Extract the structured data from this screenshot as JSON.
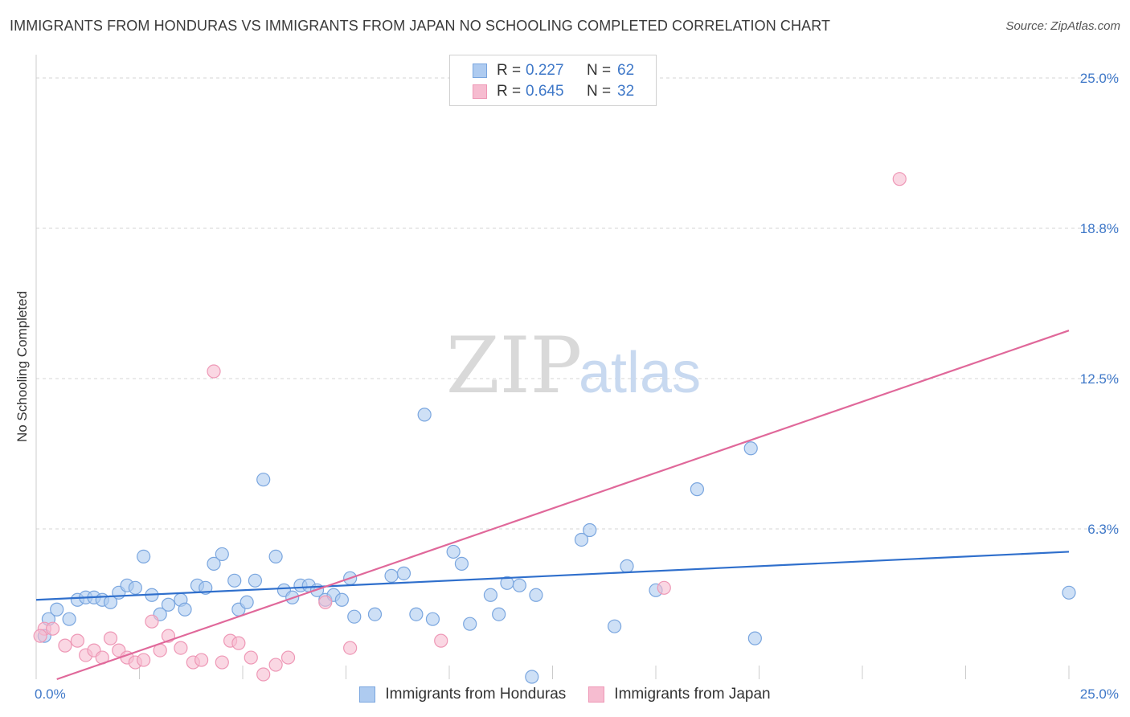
{
  "title": "IMMIGRANTS FROM HONDURAS VS IMMIGRANTS FROM JAPAN NO SCHOOLING COMPLETED CORRELATION CHART",
  "source": "Source: ZipAtlas.com",
  "watermark": {
    "zip": "ZIP",
    "atlas": "atlas"
  },
  "colors": {
    "honduras_fill": "#aecbf0",
    "honduras_stroke": "#7aa6df",
    "honduras_line": "#2f6fcc",
    "japan_fill": "#f6bcd0",
    "japan_stroke": "#ee98b6",
    "japan_line": "#e0689a",
    "grid": "#d6d6d6",
    "tick_text": "#3f78c8"
  },
  "legend": {
    "rows": [
      {
        "r_label": "R =",
        "r_value": "0.227",
        "n_label": "N =",
        "n_value": "62"
      },
      {
        "r_label": "R =",
        "r_value": "0.645",
        "n_label": "N =",
        "n_value": "32"
      }
    ]
  },
  "chart_data": {
    "type": "scatter",
    "title": "IMMIGRANTS FROM HONDURAS VS IMMIGRANTS FROM JAPAN NO SCHOOLING COMPLETED CORRELATION CHART",
    "xlabel": "",
    "ylabel": "No Schooling Completed",
    "xlim": [
      0,
      25
    ],
    "ylim": [
      0,
      25
    ],
    "x_tick_labels": [
      "0.0%",
      "25.0%"
    ],
    "y_ticks": [
      6.25,
      12.5,
      18.75,
      25.0
    ],
    "y_tick_labels": [
      "6.3%",
      "12.5%",
      "18.8%",
      "25.0%"
    ],
    "grid": true,
    "legend_position": "top-center",
    "series": [
      {
        "name": "Immigrants from Honduras",
        "r": 0.227,
        "n": 62,
        "trend": {
          "x": [
            0,
            25
          ],
          "y": [
            3.3,
            5.3
          ]
        },
        "points": [
          [
            0.3,
            2.5
          ],
          [
            0.5,
            2.9
          ],
          [
            0.8,
            2.5
          ],
          [
            1.0,
            3.3
          ],
          [
            1.2,
            3.4
          ],
          [
            1.4,
            3.4
          ],
          [
            1.6,
            3.3
          ],
          [
            1.8,
            3.2
          ],
          [
            2.0,
            3.6
          ],
          [
            2.2,
            3.9
          ],
          [
            2.4,
            3.8
          ],
          [
            2.6,
            5.1
          ],
          [
            2.8,
            3.5
          ],
          [
            3.0,
            2.7
          ],
          [
            3.2,
            3.1
          ],
          [
            3.5,
            3.3
          ],
          [
            3.6,
            2.9
          ],
          [
            3.9,
            3.9
          ],
          [
            4.1,
            3.8
          ],
          [
            4.3,
            4.8
          ],
          [
            4.5,
            5.2
          ],
          [
            4.8,
            4.1
          ],
          [
            4.9,
            2.9
          ],
          [
            5.1,
            3.2
          ],
          [
            5.3,
            4.1
          ],
          [
            5.5,
            8.3
          ],
          [
            5.8,
            5.1
          ],
          [
            6.0,
            3.7
          ],
          [
            6.2,
            3.4
          ],
          [
            6.4,
            3.9
          ],
          [
            6.6,
            3.9
          ],
          [
            6.8,
            3.7
          ],
          [
            7.0,
            3.3
          ],
          [
            7.2,
            3.5
          ],
          [
            7.4,
            3.3
          ],
          [
            7.6,
            4.2
          ],
          [
            7.7,
            2.6
          ],
          [
            8.2,
            2.7
          ],
          [
            8.6,
            4.3
          ],
          [
            8.9,
            4.4
          ],
          [
            9.2,
            2.7
          ],
          [
            9.4,
            11.0
          ],
          [
            9.6,
            2.5
          ],
          [
            10.1,
            5.3
          ],
          [
            10.3,
            4.8
          ],
          [
            10.5,
            2.3
          ],
          [
            11.0,
            3.5
          ],
          [
            11.2,
            2.7
          ],
          [
            11.4,
            4.0
          ],
          [
            11.7,
            3.9
          ],
          [
            12.1,
            3.5
          ],
          [
            13.2,
            5.8
          ],
          [
            13.4,
            6.2
          ],
          [
            14.0,
            2.2
          ],
          [
            14.3,
            4.7
          ],
          [
            15.0,
            3.7
          ],
          [
            16.0,
            7.9
          ],
          [
            17.3,
            9.6
          ],
          [
            17.4,
            1.7
          ],
          [
            25.0,
            3.6
          ],
          [
            12.0,
            0.1
          ],
          [
            0.2,
            1.8
          ]
        ]
      },
      {
        "name": "Immigrants from Japan",
        "r": 0.645,
        "n": 32,
        "trend": {
          "x": [
            0.5,
            25
          ],
          "y": [
            0,
            14.5
          ]
        },
        "points": [
          [
            0.2,
            2.1
          ],
          [
            0.4,
            2.1
          ],
          [
            0.7,
            1.4
          ],
          [
            1.0,
            1.6
          ],
          [
            1.2,
            1.0
          ],
          [
            1.4,
            1.2
          ],
          [
            1.6,
            0.9
          ],
          [
            1.8,
            1.7
          ],
          [
            2.0,
            1.2
          ],
          [
            2.2,
            0.9
          ],
          [
            2.4,
            0.7
          ],
          [
            2.6,
            0.8
          ],
          [
            2.8,
            2.4
          ],
          [
            3.0,
            1.2
          ],
          [
            3.2,
            1.8
          ],
          [
            3.5,
            1.3
          ],
          [
            3.8,
            0.7
          ],
          [
            4.0,
            0.8
          ],
          [
            4.3,
            12.8
          ],
          [
            4.7,
            1.6
          ],
          [
            4.9,
            1.5
          ],
          [
            5.2,
            0.9
          ],
          [
            5.5,
            0.2
          ],
          [
            5.8,
            0.6
          ],
          [
            6.1,
            0.9
          ],
          [
            7.0,
            3.2
          ],
          [
            7.6,
            1.3
          ],
          [
            9.8,
            1.6
          ],
          [
            15.2,
            3.8
          ],
          [
            20.9,
            20.8
          ],
          [
            0.1,
            1.8
          ],
          [
            4.5,
            0.7
          ]
        ]
      }
    ]
  },
  "bottom_legend": [
    "Immigrants from Honduras",
    "Immigrants from Japan"
  ]
}
